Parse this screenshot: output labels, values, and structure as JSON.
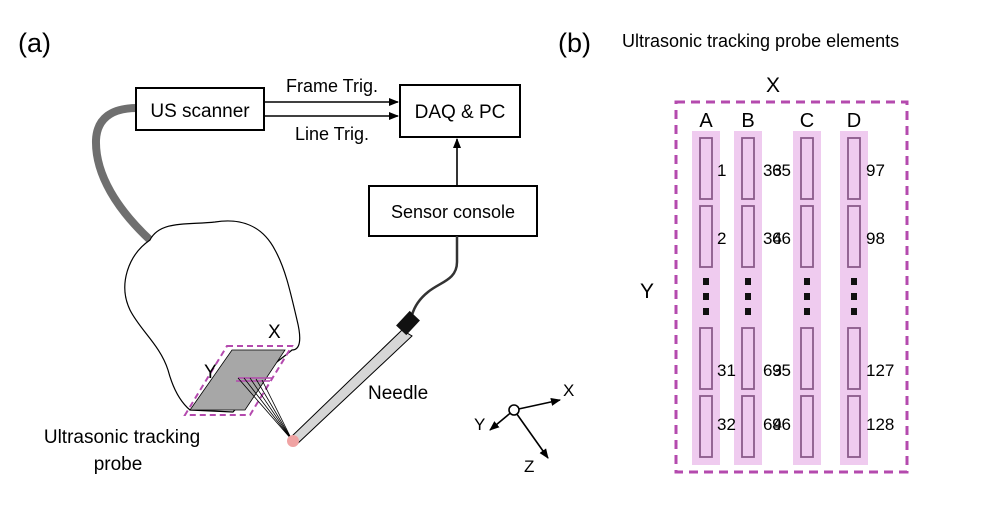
{
  "panel_a": {
    "label": "(a)",
    "us_scanner": "US scanner",
    "daq_pc": "DAQ & PC",
    "frame_trig": "Frame Trig.",
    "line_trig": "Line Trig.",
    "sensor_console": "Sensor console",
    "needle": "Needle",
    "probe_x": "X",
    "probe_y": "Y",
    "probe_caption_line1": "Ultrasonic tracking",
    "probe_caption_line2": "probe",
    "axis_x": "X",
    "axis_y": "Y",
    "axis_z": "Z"
  },
  "panel_b": {
    "label": "(b)",
    "title": "Ultrasonic tracking probe elements",
    "x_label": "X",
    "y_label": "Y",
    "columns": [
      "A",
      "B",
      "C",
      "D"
    ],
    "numbers": {
      "row1": [
        "1",
        "33",
        "65",
        "97"
      ],
      "row2": [
        "2",
        "34",
        "66",
        "98"
      ],
      "row3": [
        "31",
        "63",
        "95",
        "127"
      ],
      "row4": [
        "32",
        "64",
        "96",
        "128"
      ]
    },
    "colors": {
      "dash": "#b44aae",
      "strip": "#efcbef",
      "element": "#8a5a8a"
    }
  }
}
